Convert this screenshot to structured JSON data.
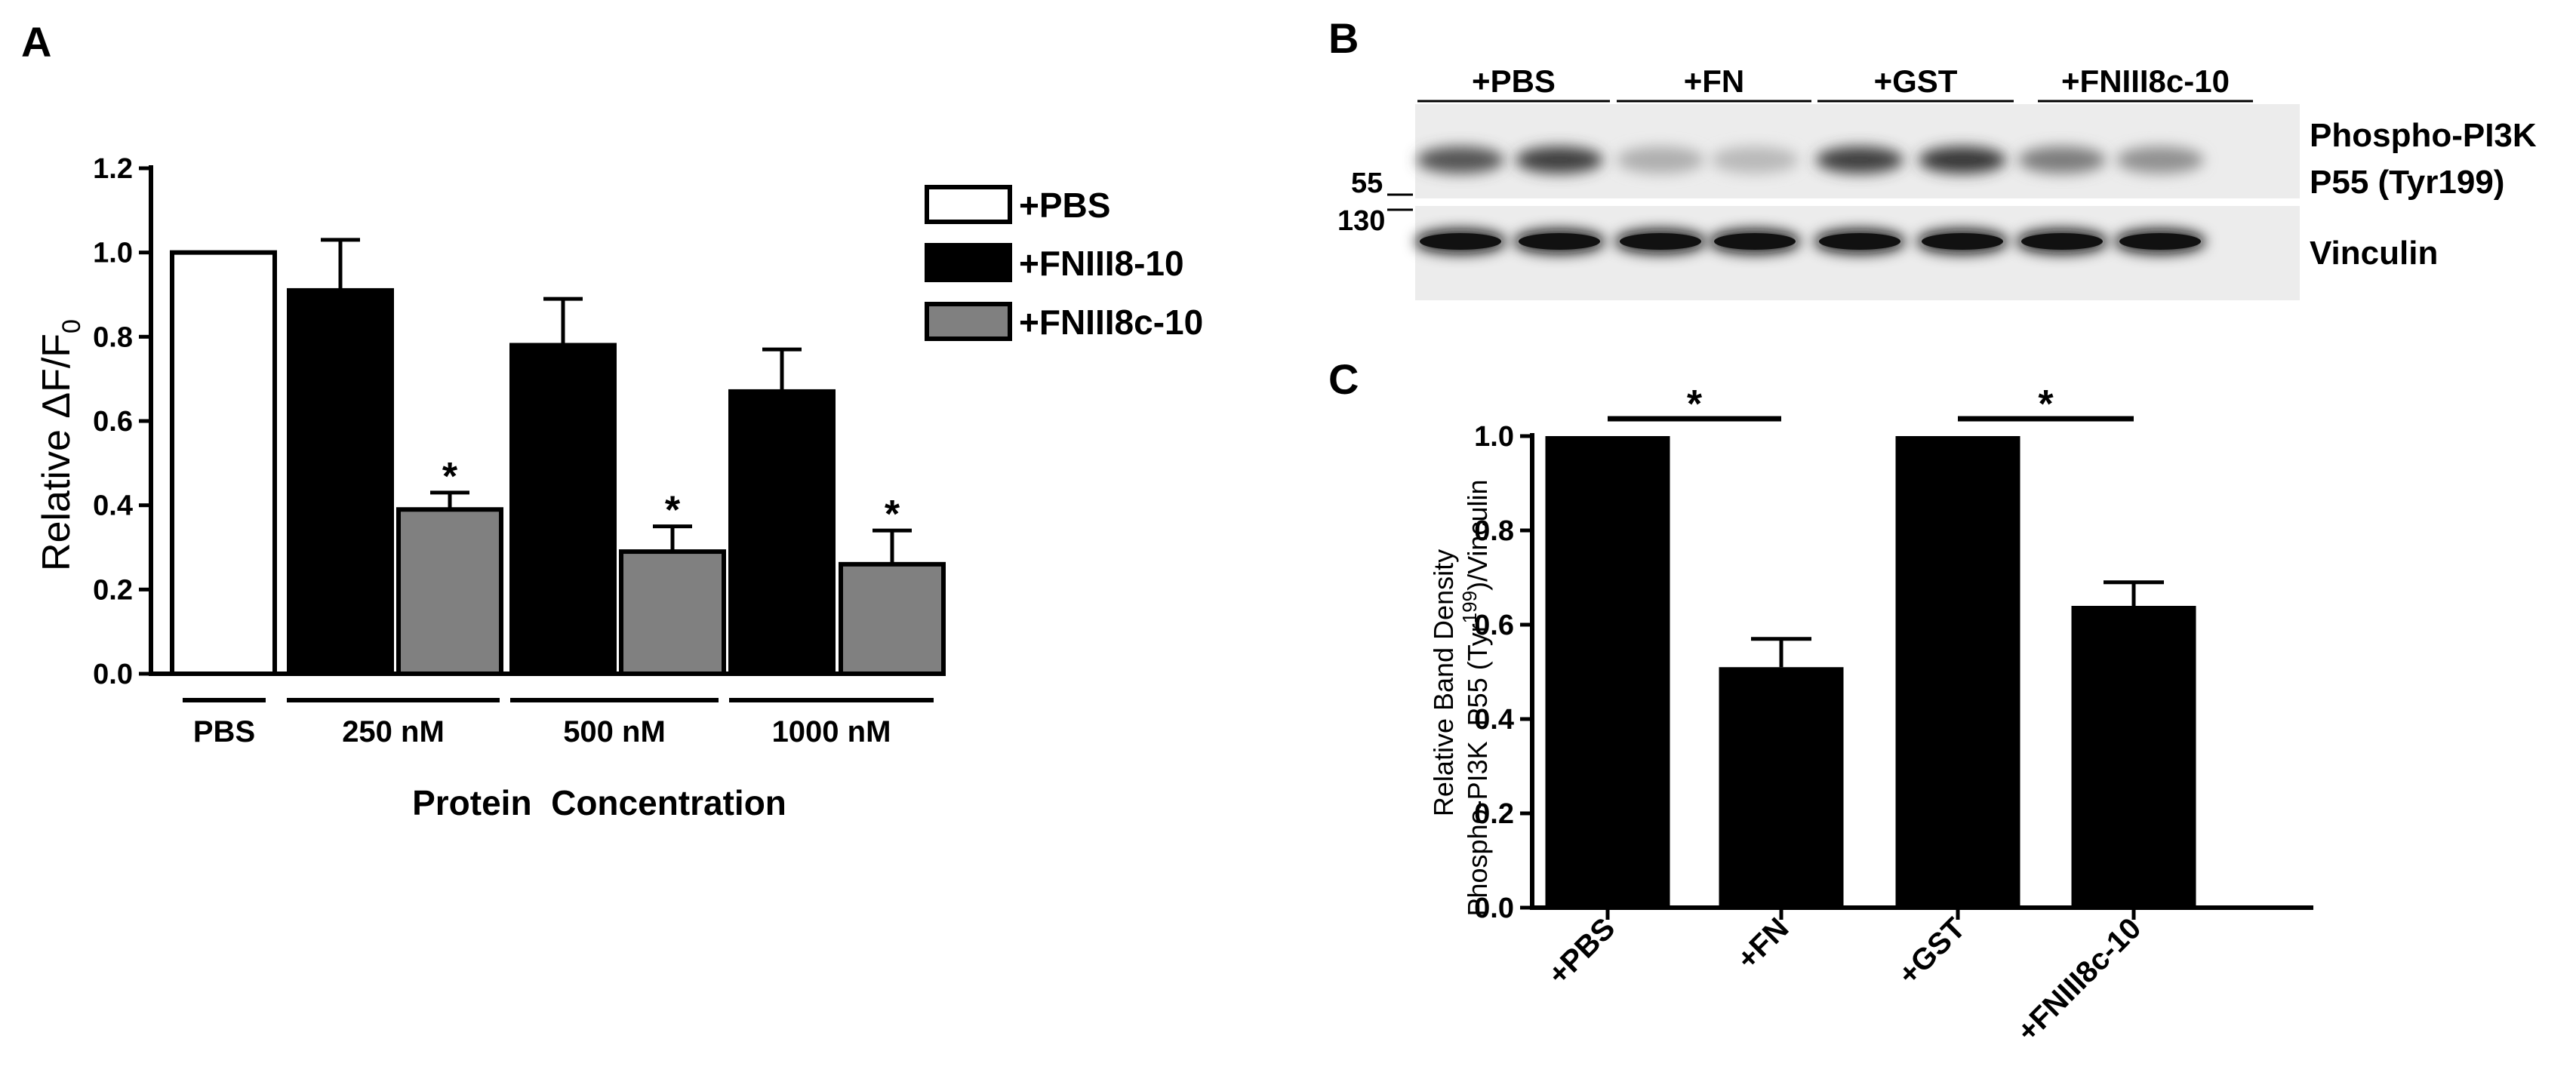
{
  "panels": {
    "a": "A",
    "b": "B",
    "c": "C"
  },
  "chart_data": [
    {
      "type": "bar",
      "panel": "A",
      "ylabel": "Relative ΔF/F",
      "ylabel_sub": "0",
      "xlabel": "Protein  Concentration",
      "ylim": [
        0,
        1.2
      ],
      "yticks": [
        "0.0",
        "0.2",
        "0.4",
        "0.6",
        "0.8",
        "1.0",
        "1.2"
      ],
      "groups": [
        "PBS",
        "250 nM",
        "500 nM",
        "1000 nM"
      ],
      "legend": [
        "+PBS",
        "+FNIII8-10",
        "+FNIII8c-10"
      ],
      "legend_position": "top-right",
      "colors": {
        "+PBS": "#ffffff",
        "+FNIII8-10": "#000000",
        "+FNIII8c-10": "#808080"
      },
      "bars": [
        {
          "group": "PBS",
          "series": "+PBS",
          "value": 1.0,
          "error": 0,
          "star": ""
        },
        {
          "group": "250 nM",
          "series": "+FNIII8-10",
          "value": 0.91,
          "error": 0.12,
          "star": ""
        },
        {
          "group": "250 nM",
          "series": "+FNIII8c-10",
          "value": 0.39,
          "error": 0.04,
          "star": "*"
        },
        {
          "group": "500 nM",
          "series": "+FNIII8-10",
          "value": 0.78,
          "error": 0.11,
          "star": ""
        },
        {
          "group": "500 nM",
          "series": "+FNIII8c-10",
          "value": 0.29,
          "error": 0.06,
          "star": "*"
        },
        {
          "group": "1000 nM",
          "series": "+FNIII8-10",
          "value": 0.67,
          "error": 0.1,
          "star": ""
        },
        {
          "group": "1000 nM",
          "series": "+FNIII8c-10",
          "value": 0.26,
          "error": 0.08,
          "star": "*"
        }
      ]
    },
    {
      "type": "bar",
      "panel": "C",
      "ylabel_line1": "Relative Band Density",
      "ylabel_line2_pre": "Phospho-PI3K  P55 (Tyr",
      "ylabel_line2_sup": "199",
      "ylabel_line2_post": ")/Vinculin",
      "ylim": [
        0,
        1.0
      ],
      "yticks": [
        "0.0",
        "0.2",
        "0.4",
        "0.6",
        "0.8",
        "1.0"
      ],
      "categories": [
        "+PBS",
        "+FN",
        "+GST",
        "+FNIII8c-10"
      ],
      "values": [
        1.0,
        0.51,
        1.0,
        0.64
      ],
      "errors": [
        0,
        0.06,
        0,
        0.05
      ],
      "significance": [
        {
          "from": "+PBS",
          "to": "+FN",
          "label": "*"
        },
        {
          "from": "+GST",
          "to": "+FNIII8c-10",
          "label": "*"
        }
      ]
    }
  ],
  "blot": {
    "conditions": [
      "+PBS",
      "+FN",
      "+GST",
      "+FNIII8c-10"
    ],
    "band_labels": {
      "phospho_line1": "Phospho-PI3K",
      "phospho_line2": "P55 (Tyr199)",
      "vinculin": "Vinculin"
    },
    "mw_markers": [
      "55",
      "130"
    ],
    "phospho_intensity": [
      0.75,
      0.85,
      0.3,
      0.25,
      0.85,
      0.9,
      0.55,
      0.45
    ],
    "vinculin_intensity": [
      1,
      1,
      1,
      1,
      1,
      1,
      1,
      1
    ]
  }
}
